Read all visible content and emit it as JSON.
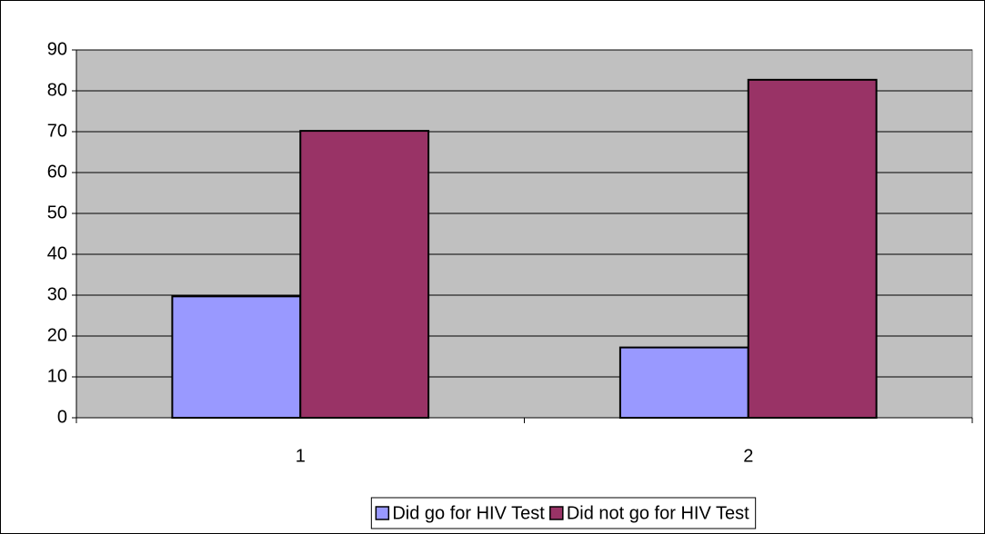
{
  "chart_data": {
    "type": "bar",
    "categories": [
      "1",
      "2"
    ],
    "series": [
      {
        "name": "Did go for HIV Test",
        "color": "#9999ff",
        "values": [
          29.7,
          17.2
        ]
      },
      {
        "name": "Did not go for HIV Test",
        "color": "#993366",
        "values": [
          70.2,
          82.7
        ]
      }
    ],
    "ylim": [
      0,
      90
    ],
    "yticks": [
      0,
      10,
      20,
      30,
      40,
      50,
      60,
      70,
      80,
      90
    ],
    "grid": true,
    "legend": "bottom",
    "plot_background": "#c0c0c0"
  }
}
